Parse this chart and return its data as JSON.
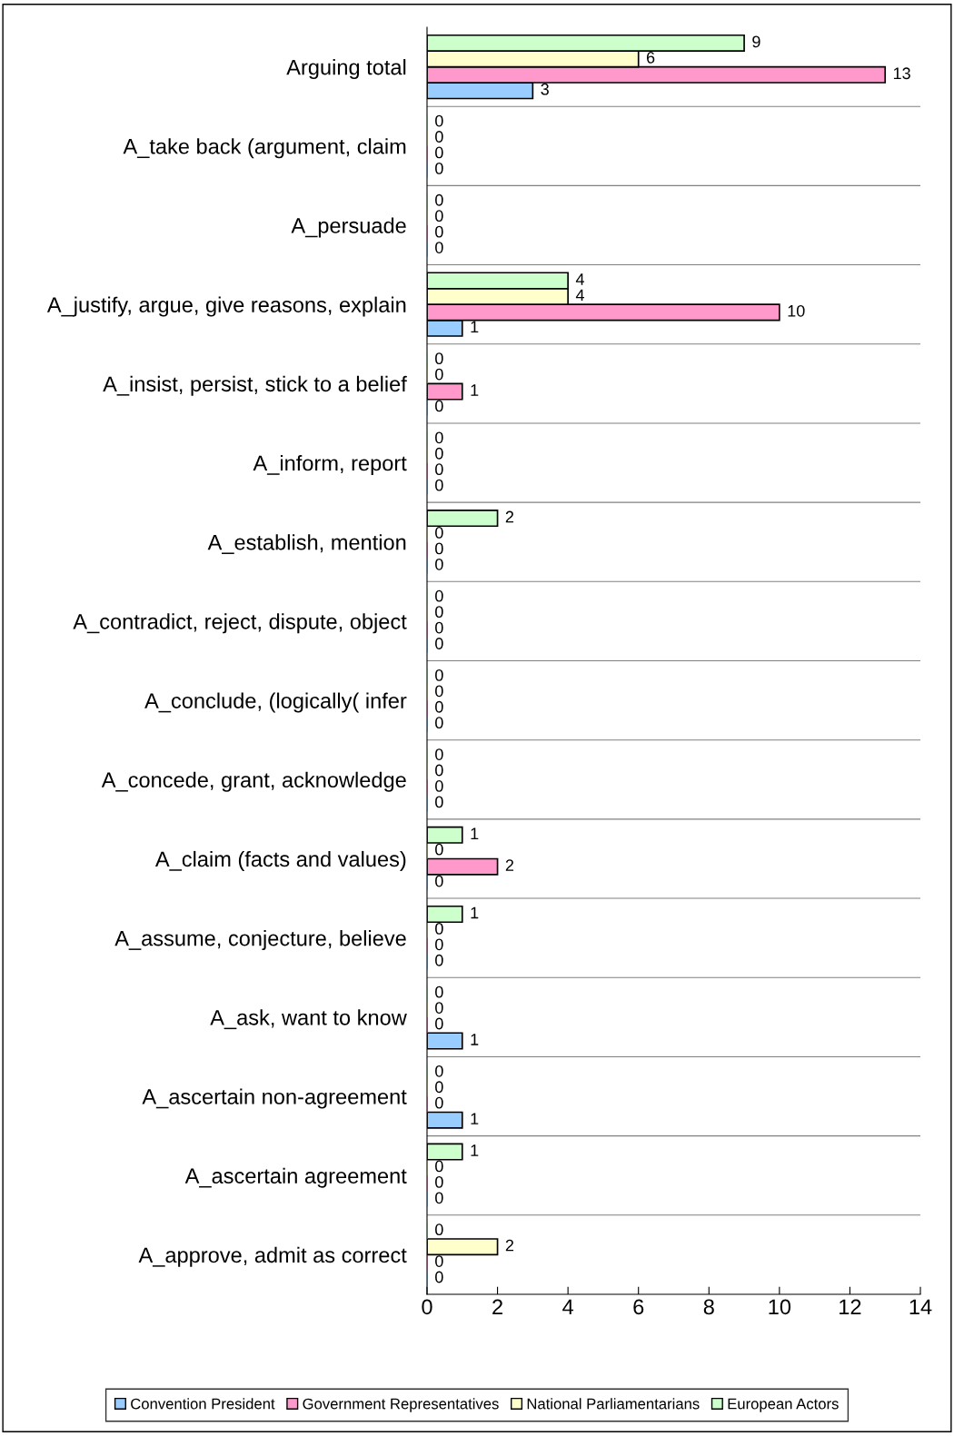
{
  "chart_data": {
    "type": "bar",
    "orientation": "horizontal",
    "categories": [
      "Arguing total",
      "A_take back (argument, claim",
      "A_persuade",
      "A_justify, argue, give reasons, explain",
      "A_insist, persist, stick to a belief",
      "A_inform, report",
      "A_establish, mention",
      "A_contradict, reject, dispute, object",
      "A_conclude, (logically( infer",
      "A_concede, grant, acknowledge",
      "A_claim (facts and values)",
      "A_assume, conjecture, believe",
      "A_ask, want to know",
      "A_ascertain non-agreement",
      "A_ascertain agreement",
      "A_approve, admit as correct"
    ],
    "series": [
      {
        "name": "Convention President",
        "color": "#99ccff",
        "values": [
          3,
          0,
          0,
          1,
          0,
          0,
          0,
          0,
          0,
          0,
          0,
          0,
          1,
          1,
          0,
          0
        ]
      },
      {
        "name": "Government Representatives",
        "color": "#ff99cc",
        "values": [
          13,
          0,
          0,
          10,
          1,
          0,
          0,
          0,
          0,
          0,
          2,
          0,
          0,
          0,
          0,
          0
        ]
      },
      {
        "name": "National Parliamentarians",
        "color": "#ffffcc",
        "values": [
          6,
          0,
          0,
          4,
          0,
          0,
          0,
          0,
          0,
          0,
          0,
          0,
          0,
          0,
          0,
          2
        ]
      },
      {
        "name": "European Actors",
        "color": "#ccffcc",
        "values": [
          9,
          0,
          0,
          4,
          0,
          0,
          2,
          0,
          0,
          0,
          1,
          1,
          0,
          0,
          1,
          0
        ]
      }
    ],
    "xlim": [
      0,
      14
    ],
    "xticks": [
      0,
      2,
      4,
      6,
      8,
      10,
      12,
      14
    ],
    "data_labels": true,
    "grid": "y",
    "legend": "bottom"
  }
}
